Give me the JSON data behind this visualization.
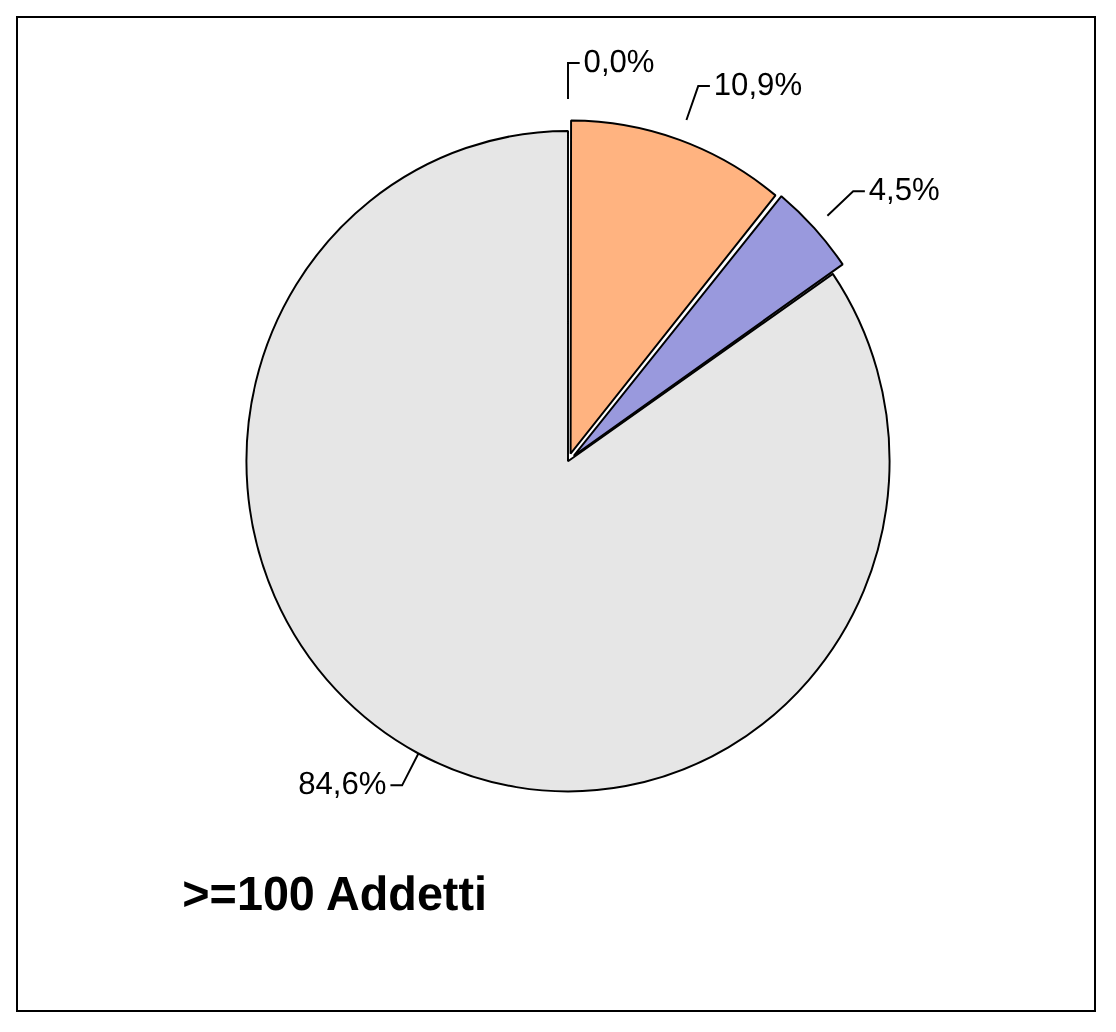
{
  "chart_data": {
    "type": "pie",
    "title": ">=100 Addetti",
    "categories": [
      null,
      null,
      null,
      null
    ],
    "values": [
      0.0,
      10.9,
      4.5,
      84.6
    ],
    "colors": [
      "#ff9f5a",
      "#ffb380",
      "#9999dd",
      "#e6e6e6"
    ],
    "value_labels": [
      "0,0%",
      "10,9%",
      "4,5%",
      "84,6%"
    ],
    "legend": false
  }
}
